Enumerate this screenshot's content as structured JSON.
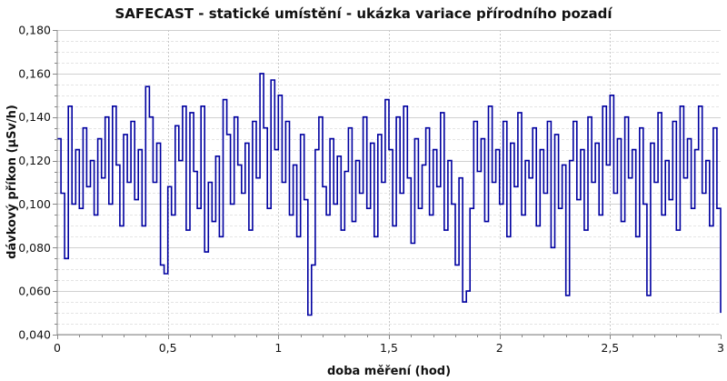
{
  "chart_data": {
    "type": "line",
    "title": "SAFECAST - statické umístění - ukázka variace přírodního pozadí",
    "xlabel": "doba měření (hod)",
    "ylabel": "dávkový příkon (µSv/h)",
    "xlim": [
      0,
      3
    ],
    "ylim": [
      0.04,
      0.18
    ],
    "x_major_step": 0.5,
    "x_minor_step": 0.1,
    "y_major_step": 0.02,
    "y_minor_step": 0.005,
    "x_tick_labels": [
      "0",
      "0,5",
      "1",
      "1,5",
      "2",
      "2,5",
      "3"
    ],
    "y_tick_labels": [
      "0,040",
      "0,060",
      "0,080",
      "0,100",
      "0,120",
      "0,140",
      "0,160",
      "0,180"
    ],
    "grid": true,
    "legend": "none",
    "series_color": "#0000a0",
    "series": [
      {
        "name": "dávkový příkon",
        "x_start": 0,
        "x_interval_hours": 0.0166667,
        "values": [
          0.13,
          0.105,
          0.075,
          0.145,
          0.1,
          0.125,
          0.098,
          0.135,
          0.108,
          0.12,
          0.095,
          0.13,
          0.112,
          0.14,
          0.1,
          0.145,
          0.118,
          0.09,
          0.132,
          0.11,
          0.138,
          0.102,
          0.125,
          0.09,
          0.154,
          0.14,
          0.11,
          0.128,
          0.072,
          0.068,
          0.108,
          0.095,
          0.136,
          0.12,
          0.145,
          0.088,
          0.142,
          0.115,
          0.098,
          0.145,
          0.078,
          0.11,
          0.092,
          0.122,
          0.085,
          0.148,
          0.132,
          0.1,
          0.14,
          0.118,
          0.105,
          0.128,
          0.088,
          0.138,
          0.112,
          0.16,
          0.135,
          0.098,
          0.157,
          0.125,
          0.15,
          0.11,
          0.138,
          0.095,
          0.118,
          0.085,
          0.132,
          0.102,
          0.049,
          0.072,
          0.125,
          0.14,
          0.108,
          0.095,
          0.13,
          0.1,
          0.122,
          0.088,
          0.115,
          0.135,
          0.092,
          0.12,
          0.105,
          0.14,
          0.098,
          0.128,
          0.085,
          0.132,
          0.11,
          0.148,
          0.125,
          0.09,
          0.14,
          0.105,
          0.145,
          0.112,
          0.082,
          0.13,
          0.098,
          0.118,
          0.135,
          0.095,
          0.125,
          0.108,
          0.142,
          0.088,
          0.12,
          0.1,
          0.072,
          0.112,
          0.055,
          0.06,
          0.098,
          0.138,
          0.115,
          0.13,
          0.092,
          0.145,
          0.11,
          0.125,
          0.1,
          0.138,
          0.085,
          0.128,
          0.108,
          0.142,
          0.095,
          0.12,
          0.112,
          0.135,
          0.09,
          0.125,
          0.105,
          0.138,
          0.08,
          0.132,
          0.098,
          0.118,
          0.058,
          0.12,
          0.138,
          0.102,
          0.125,
          0.088,
          0.14,
          0.11,
          0.128,
          0.095,
          0.145,
          0.118,
          0.15,
          0.105,
          0.13,
          0.092,
          0.14,
          0.112,
          0.125,
          0.085,
          0.135,
          0.1,
          0.058,
          0.128,
          0.11,
          0.142,
          0.095,
          0.12,
          0.102,
          0.138,
          0.088,
          0.145,
          0.112,
          0.13,
          0.098,
          0.125,
          0.145,
          0.105,
          0.12,
          0.09,
          0.135,
          0.098,
          0.05
        ]
      }
    ]
  }
}
